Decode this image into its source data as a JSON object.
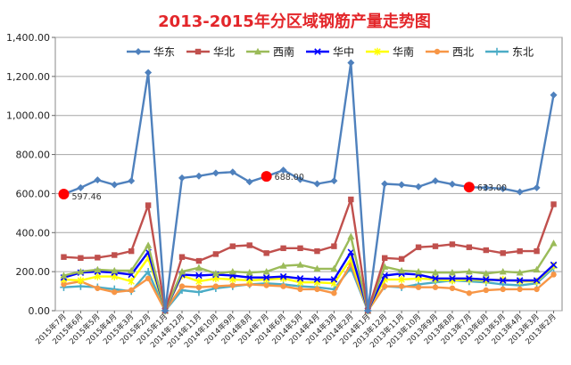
{
  "chart_data": {
    "type": "line",
    "title": "2013-2015年分区域钢筋产量走势图",
    "xlabel": "",
    "ylabel": "",
    "ylim": [
      0,
      1400
    ],
    "yticks": [
      "0.00",
      "200.00",
      "400.00",
      "600.00",
      "800.00",
      "1,000.00",
      "1,200.00",
      "1,400.00"
    ],
    "grid": true,
    "legend_position": "top",
    "categories": [
      "2015年7月",
      "2015年6月",
      "2015年5月",
      "2015年4月",
      "2015年3月",
      "2015年2月",
      "2015年1月",
      "2014年12月",
      "2014年11月",
      "2014年10月",
      "2014年9月",
      "2014年8月",
      "2014年7月",
      "2014年6月",
      "2014年5月",
      "2014年4月",
      "2014年3月",
      "2014年2月",
      "2014年1月",
      "2013年12月",
      "2013年11月",
      "2013年10月",
      "2013年9月",
      "2013年8月",
      "2013年7月",
      "2013年6月",
      "2013年5月",
      "2013年4月",
      "2013年3月",
      "2013年2月"
    ],
    "series": [
      {
        "name": "华东",
        "color": "#4f81bd",
        "marker": "diamond",
        "values": [
          597.46,
          630,
          670,
          645,
          665,
          1220,
          0,
          680,
          690,
          705,
          710,
          660,
          688,
          720,
          672,
          650,
          665,
          1270,
          0,
          650,
          645,
          635,
          665,
          648,
          633,
          630,
          625,
          608,
          630,
          1105
        ]
      },
      {
        "name": "华北",
        "color": "#c0504d",
        "marker": "square",
        "values": [
          275,
          270,
          272,
          285,
          305,
          540,
          0,
          275,
          255,
          290,
          330,
          335,
          295,
          320,
          320,
          305,
          330,
          570,
          0,
          270,
          265,
          325,
          330,
          340,
          325,
          310,
          295,
          305,
          305,
          545
        ]
      },
      {
        "name": "西南",
        "color": "#9bbb59",
        "marker": "triangle",
        "values": [
          180,
          200,
          210,
          205,
          205,
          335,
          0,
          200,
          220,
          190,
          200,
          195,
          200,
          230,
          235,
          215,
          215,
          380,
          0,
          225,
          205,
          200,
          195,
          195,
          200,
          190,
          200,
          195,
          210,
          345
        ]
      },
      {
        "name": "华中",
        "color": "#0000ff",
        "marker": "x",
        "values": [
          170,
          195,
          200,
          195,
          185,
          300,
          0,
          185,
          180,
          185,
          180,
          170,
          170,
          175,
          165,
          160,
          160,
          300,
          0,
          180,
          190,
          185,
          165,
          165,
          165,
          160,
          155,
          155,
          155,
          235
        ]
      },
      {
        "name": "华南",
        "color": "#ffff00",
        "marker": "asterisk",
        "values": [
          160,
          155,
          175,
          175,
          150,
          270,
          0,
          180,
          150,
          165,
          160,
          155,
          160,
          165,
          145,
          145,
          140,
          265,
          0,
          160,
          160,
          165,
          160,
          155,
          160,
          155,
          160,
          150,
          150,
          230
        ]
      },
      {
        "name": "西北",
        "color": "#f79646",
        "marker": "circle",
        "values": [
          135,
          150,
          115,
          95,
          105,
          165,
          0,
          125,
          120,
          125,
          130,
          135,
          130,
          125,
          110,
          110,
          90,
          240,
          0,
          125,
          125,
          120,
          120,
          115,
          90,
          105,
          110,
          110,
          110,
          185
        ]
      },
      {
        "name": "东北",
        "color": "#4bacc6",
        "marker": "plus",
        "values": [
          120,
          125,
          120,
          110,
          100,
          200,
          0,
          105,
          95,
          115,
          125,
          135,
          140,
          135,
          125,
          120,
          110,
          220,
          0,
          125,
          120,
          135,
          145,
          155,
          150,
          145,
          135,
          130,
          140,
          220
        ]
      }
    ],
    "annotations": [
      {
        "series": "华东",
        "category": "2015年7月",
        "label": "597.46"
      },
      {
        "series": "华东",
        "category": "2014年7月",
        "label": "688.00"
      },
      {
        "series": "华东",
        "category": "2013年7月",
        "label": "633.00"
      }
    ]
  }
}
